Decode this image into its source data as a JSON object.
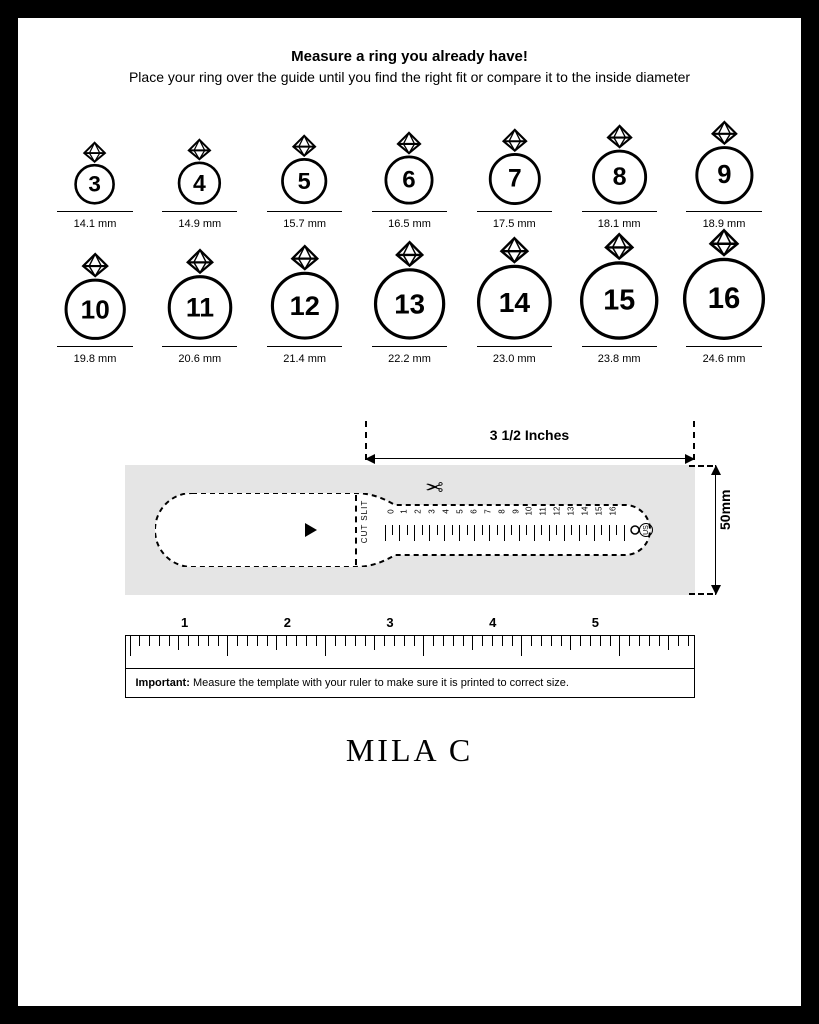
{
  "header": {
    "title": "Measure a ring you already have!",
    "subtitle": "Place your ring over the guide until you find the right fit or compare it to the inside diameter"
  },
  "rings": [
    {
      "size": "3",
      "mm": "14.1 mm",
      "radius": 22
    },
    {
      "size": "4",
      "mm": "14.9 mm",
      "radius": 23
    },
    {
      "size": "5",
      "mm": "15.7 mm",
      "radius": 24
    },
    {
      "size": "6",
      "mm": "16.5 mm",
      "radius": 25
    },
    {
      "size": "7",
      "mm": "17.5 mm",
      "radius": 26
    },
    {
      "size": "8",
      "mm": "18.1 mm",
      "radius": 27
    },
    {
      "size": "9",
      "mm": "18.9 mm",
      "radius": 28
    },
    {
      "size": "10",
      "mm": "19.8 mm",
      "radius": 29
    },
    {
      "size": "11",
      "mm": "20.6 mm",
      "radius": 30
    },
    {
      "size": "12",
      "mm": "21.4 mm",
      "radius": 31
    },
    {
      "size": "13",
      "mm": "22.2 mm",
      "radius": 32
    },
    {
      "size": "14",
      "mm": "23.0 mm",
      "radius": 33
    },
    {
      "size": "15",
      "mm": "23.8 mm",
      "radius": 34
    },
    {
      "size": "16",
      "mm": "24.6 mm",
      "radius": 35
    }
  ],
  "ring_style": {
    "stroke": "#000000",
    "stroke_width": 3,
    "diamond_stroke_width": 2.2,
    "fill": "#ffffff"
  },
  "sizer": {
    "top_label": "3 1/2 Inches",
    "right_label": "50mm",
    "cut_slit": "CUT SLIT",
    "us_label": "US",
    "scale_values": [
      "0",
      "1",
      "2",
      "3",
      "4",
      "5",
      "6",
      "7",
      "8",
      "9",
      "10",
      "11",
      "12",
      "13",
      "14",
      "15",
      "16"
    ],
    "body_bg": "#e5e5e5",
    "shape_bg": "#ffffff"
  },
  "ruler": {
    "labels": [
      "1",
      "2",
      "3",
      "4",
      "5"
    ],
    "important_bold": "Important:",
    "important_text": " Measure the template with your ruler to make sure it is printed to correct size."
  },
  "brand": "MILA C",
  "colors": {
    "page_bg": "#ffffff",
    "border": "#000000",
    "text": "#000000"
  }
}
